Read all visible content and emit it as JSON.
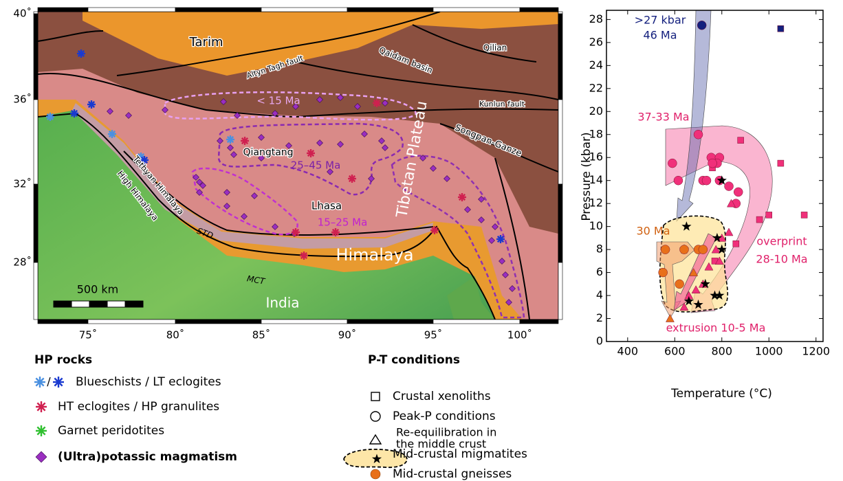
{
  "map": {
    "labels": [
      "Tarim",
      "Altyn Tagh fault",
      "Qaidam basin",
      "Qilian",
      "Kunlun fault",
      "< 15 Ma",
      "Tibetan Plateau",
      "Songpan-Ganze",
      "Qiangtang",
      "25–45 Ma",
      "Tethyan Himalaya",
      "High Himalaya",
      "Lhasa",
      "15–25 Ma",
      "STD",
      "Himalaya",
      "MCT",
      "India"
    ],
    "lon_labels": [
      "75˚",
      "80˚",
      "85˚",
      "90˚",
      "95˚",
      "100˚"
    ],
    "lat_labels": [
      "40˚",
      "36˚",
      "32˚",
      "28˚"
    ],
    "scale_bar": "500 km"
  },
  "legend_hp": {
    "title": "HP rocks",
    "items": [
      "Blueschists / LT eclogites",
      "HT eclogites / HP granulites",
      "Garnet peridotites",
      "(Ultra)potassic magmatism"
    ],
    "slash": "/"
  },
  "legend_pt": {
    "title": "P-T conditions",
    "items": [
      "Crustal xenoliths",
      "Peak-P conditions",
      [
        "Re-equilibration in",
        "the middle crust"
      ],
      "Mid-crustal migmatites",
      "Mid-crustal gneisses"
    ]
  },
  "chart_data": {
    "type": "scatter",
    "xlabel": "Temperature (°C)",
    "ylabel": "Pressure (kbar)",
    "xlim": [
      310,
      1230
    ],
    "ylim": [
      0,
      28.8
    ],
    "xticks": [
      400,
      600,
      800,
      1000,
      1200
    ],
    "yticks": [
      0,
      2,
      4,
      6,
      8,
      10,
      12,
      14,
      16,
      18,
      20,
      22,
      24,
      26,
      28
    ],
    "annotations": [
      ">27 kbar",
      "46 Ma",
      "37-33 Ma",
      "30 Ma",
      "overprint",
      "28-10 Ma",
      "extrusion 10-5 Ma"
    ],
    "series": [
      {
        "marker": "square",
        "color": "#14207e",
        "x": [
          1050
        ],
        "values": [
          27.2
        ]
      },
      {
        "marker": "square",
        "color": "#f0307a",
        "x": [
          880,
          760,
          1050,
          1000,
          960,
          1150,
          770,
          860
        ],
        "values": [
          17.5,
          15.1,
          15.5,
          11,
          10.6,
          11,
          7,
          8.5
        ]
      },
      {
        "marker": "circle",
        "color": "#14207e",
        "x": [
          715
        ],
        "values": [
          27.5
        ]
      },
      {
        "marker": "circle",
        "color": "#f0307a",
        "x": [
          700,
          590,
          615,
          720,
          755,
          790,
          780,
          760,
          735,
          790,
          830,
          870,
          860
        ],
        "values": [
          18,
          15.5,
          14,
          14,
          16,
          16,
          15.5,
          15.5,
          14,
          14,
          13.5,
          13,
          12
        ]
      },
      {
        "marker": "triangle",
        "color": "#f0307a",
        "x": [
          840,
          800,
          775,
          790,
          745,
          720,
          690,
          660,
          830,
          640
        ],
        "values": [
          12,
          9,
          8,
          7,
          6.5,
          5,
          4.5,
          4,
          9.5,
          3
        ]
      },
      {
        "marker": "triangle",
        "color": "#e8701a",
        "x": [
          680,
          580
        ],
        "values": [
          6,
          2
        ]
      },
      {
        "marker": "star",
        "color": "#000000",
        "x": [
          650,
          640,
          780,
          800,
          800,
          660,
          700,
          770,
          790,
          730
        ],
        "values": [
          10,
          8,
          9,
          8,
          14,
          3.5,
          3.2,
          4,
          4,
          5
        ]
      },
      {
        "marker": "circle",
        "color": "#e8701a",
        "x": [
          560,
          550,
          640,
          700,
          720,
          620
        ],
        "values": [
          8,
          6,
          8,
          8,
          8,
          5
        ]
      }
    ]
  }
}
